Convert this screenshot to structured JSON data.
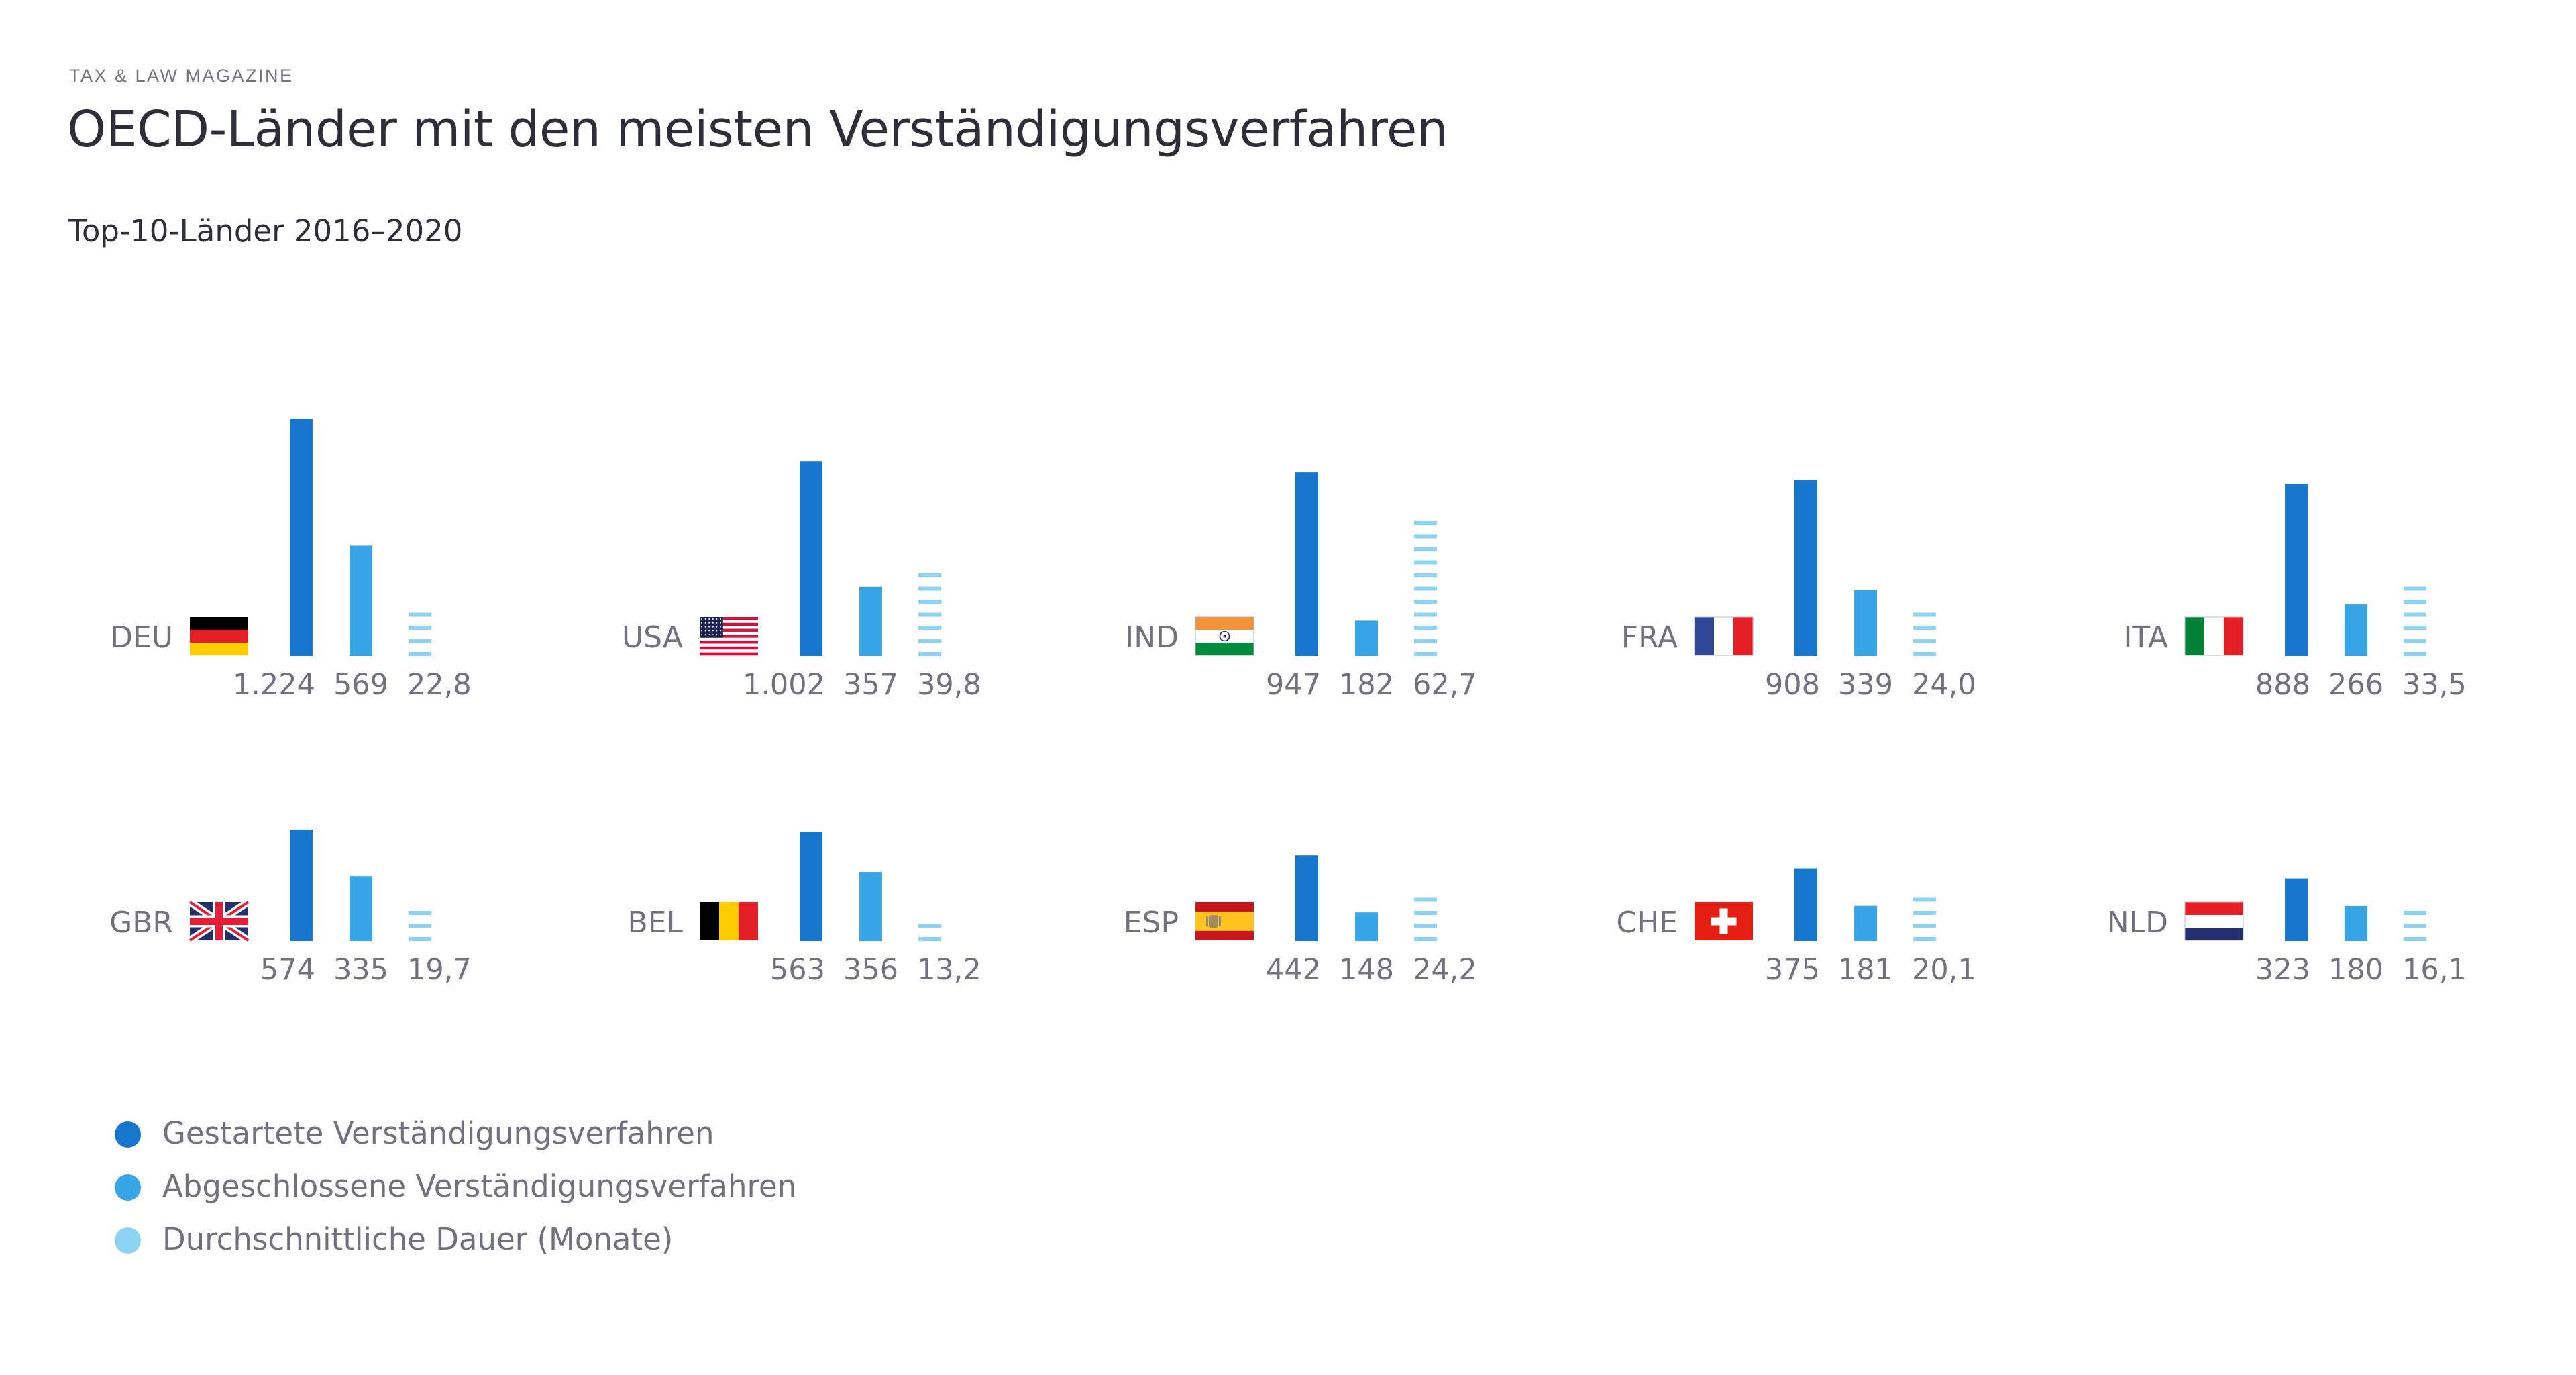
{
  "header": {
    "magazine": "TAX & LAW MAGAZINE",
    "title": "OECD-Länder mit den meisten Verständigungsverfahren",
    "subtitle": "Top-10-Länder 2016–2020"
  },
  "colors": {
    "started": "#1877cc",
    "closed": "#38a5e6",
    "duration": "#8cd3f2",
    "label_text": "#72727f",
    "title_text": "#2e2e38"
  },
  "legend": {
    "placement": "bottom-left",
    "items": [
      {
        "label": "Gestartete Verständigungsverfahren",
        "color_key": "started"
      },
      {
        "label": "Abgeschlossene Verständigungsverfahren",
        "color_key": "closed"
      },
      {
        "label": "Durchschnittliche Dauer (Monate)",
        "color_key": "duration"
      }
    ]
  },
  "chart_data": {
    "type": "bar",
    "title": "OECD-Länder mit den meisten Verständigungsverfahren",
    "subtitle": "Top-10-Länder 2016–2020",
    "xlabel": "",
    "ylabel": "",
    "grid": false,
    "categories": [
      "DEU",
      "USA",
      "IND",
      "FRA",
      "ITA",
      "GBR",
      "BEL",
      "ESP",
      "CHE",
      "NLD"
    ],
    "flags": [
      "flag-germany",
      "flag-usa",
      "flag-india",
      "flag-france",
      "flag-italy",
      "flag-uk",
      "flag-belgium",
      "flag-spain",
      "flag-switzerland",
      "flag-netherlands"
    ],
    "series": [
      {
        "name": "Gestartete Verständigungsverfahren",
        "key": "started",
        "values": [
          1224,
          1002,
          947,
          908,
          888,
          574,
          563,
          442,
          375,
          323
        ],
        "labels": [
          "1.224",
          "1.002",
          "947",
          "908",
          "888",
          "574",
          "563",
          "442",
          "375",
          "323"
        ]
      },
      {
        "name": "Abgeschlossene Verständigungsverfahren",
        "key": "closed",
        "values": [
          569,
          357,
          182,
          339,
          266,
          335,
          356,
          148,
          181,
          180
        ],
        "labels": [
          "569",
          "357",
          "182",
          "339",
          "266",
          "335",
          "356",
          "148",
          "181",
          "180"
        ]
      },
      {
        "name": "Durchschnittliche Dauer (Monate)",
        "key": "duration",
        "values": [
          22.8,
          39.8,
          62.7,
          24.0,
          33.5,
          19.7,
          13.2,
          24.2,
          20.1,
          16.1
        ],
        "labels": [
          "22,8",
          "39,8",
          "62,7",
          "24,0",
          "33,5",
          "19,7",
          "13,2",
          "24,2",
          "20,1",
          "16,1"
        ]
      }
    ],
    "duration_months_per_dash": 5.7
  }
}
